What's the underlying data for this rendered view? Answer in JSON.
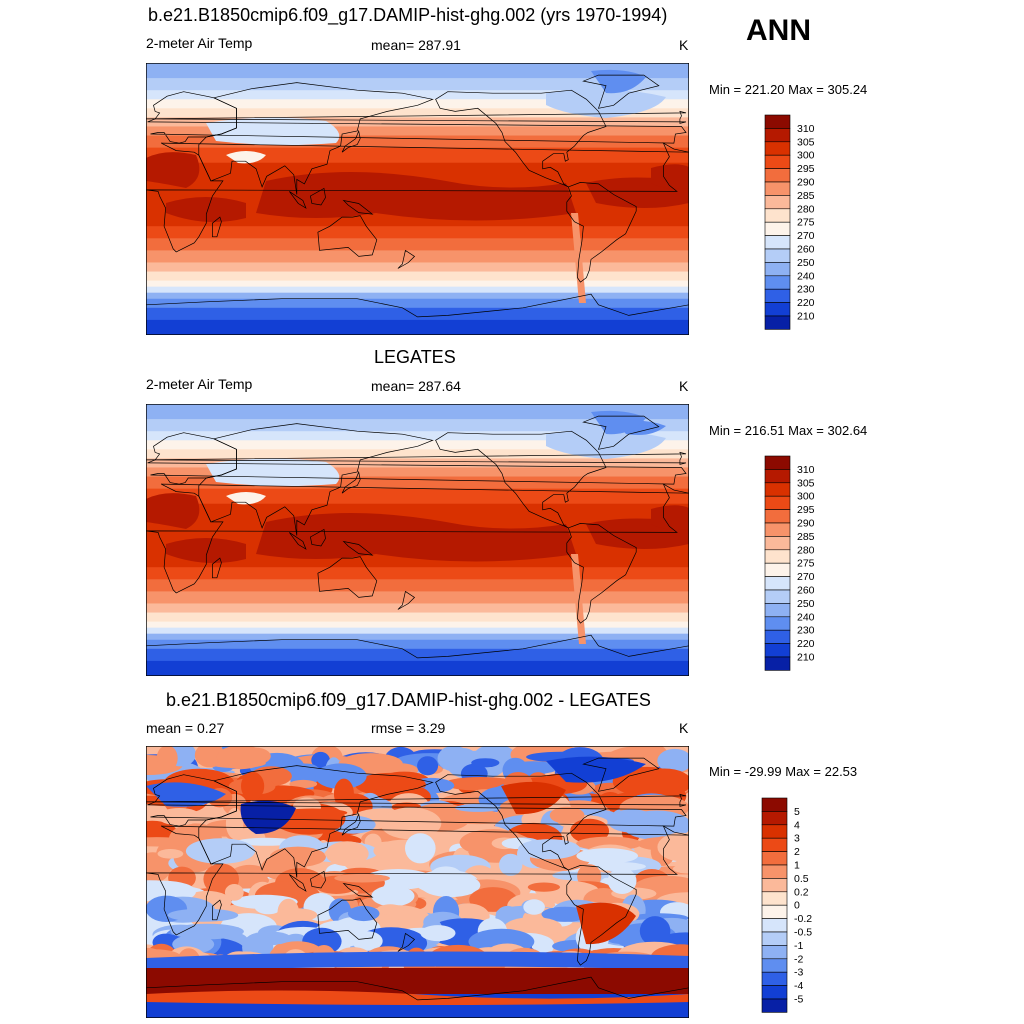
{
  "season": "ANN",
  "panels": [
    {
      "title": "b.e21.B1850cmip6.f09_g17.DAMIP-hist-ghg.002 (yrs 1970-1994)",
      "left": "2-meter Air Temp",
      "center": "mean= 287.91",
      "right": "K",
      "minmax": "Min = 221.20 Max = 305.24",
      "field": "model"
    },
    {
      "title": "LEGATES",
      "left": "2-meter Air Temp",
      "center": "mean= 287.64",
      "right": "K",
      "minmax": "Min = 216.51 Max = 302.64",
      "field": "obs"
    },
    {
      "title": "b.e21.B1850cmip6.f09_g17.DAMIP-hist-ghg.002 - LEGATES",
      "left": "mean =   0.27",
      "center": "rmse =   3.29",
      "right": "K",
      "minmax": "Min = -29.99 Max =  22.53",
      "field": "diff"
    }
  ],
  "colorbars": {
    "temp": {
      "labels": [
        "310",
        "305",
        "300",
        "295",
        "290",
        "285",
        "280",
        "275",
        "270",
        "260",
        "250",
        "240",
        "230",
        "220",
        "210"
      ],
      "colors": [
        "#8c0a00",
        "#b51900",
        "#d93100",
        "#ec4a16",
        "#f26d3d",
        "#f7936a",
        "#fbb99a",
        "#fee3cd",
        "#fdf3ea",
        "#d6e5fb",
        "#b4cdf7",
        "#8eb1f3",
        "#5f8ef0",
        "#2f60e6",
        "#123fd4",
        "#0720a6"
      ]
    },
    "diff": {
      "labels": [
        "5",
        "4",
        "3",
        "2",
        "1",
        "0.5",
        "0.2",
        "0",
        "-0.2",
        "-0.5",
        "-1",
        "-2",
        "-3",
        "-4",
        "-5"
      ],
      "colors": [
        "#8c0a00",
        "#b51900",
        "#d93100",
        "#ec4a16",
        "#f26d3d",
        "#f7936a",
        "#fbb99a",
        "#fee3cd",
        "#fdf3ea",
        "#d6e5fb",
        "#b4cdf7",
        "#8eb1f3",
        "#5f8ef0",
        "#2f60e6",
        "#123fd4",
        "#0720a6"
      ]
    }
  }
}
